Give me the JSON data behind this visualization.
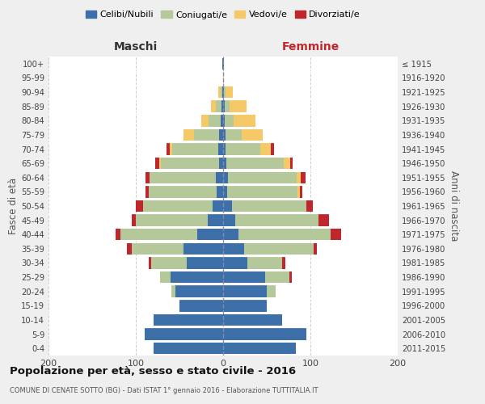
{
  "age_groups": [
    "0-4",
    "5-9",
    "10-14",
    "15-19",
    "20-24",
    "25-29",
    "30-34",
    "35-39",
    "40-44",
    "45-49",
    "50-54",
    "55-59",
    "60-64",
    "65-69",
    "70-74",
    "75-79",
    "80-84",
    "85-89",
    "90-94",
    "95-99",
    "100+"
  ],
  "birth_years": [
    "2011-2015",
    "2006-2010",
    "2001-2005",
    "1996-2000",
    "1991-1995",
    "1986-1990",
    "1981-1985",
    "1976-1980",
    "1971-1975",
    "1966-1970",
    "1961-1965",
    "1956-1960",
    "1951-1955",
    "1946-1950",
    "1941-1945",
    "1936-1940",
    "1931-1935",
    "1926-1930",
    "1921-1925",
    "1916-1920",
    "≤ 1915"
  ],
  "males": {
    "celibe": [
      80,
      90,
      80,
      50,
      55,
      60,
      42,
      45,
      30,
      18,
      12,
      7,
      8,
      5,
      6,
      5,
      3,
      2,
      1,
      0,
      1
    ],
    "coniugato": [
      0,
      0,
      0,
      0,
      4,
      12,
      40,
      60,
      88,
      82,
      80,
      78,
      76,
      66,
      52,
      28,
      14,
      6,
      2,
      0,
      0
    ],
    "vedovo": [
      0,
      0,
      0,
      0,
      0,
      0,
      0,
      0,
      0,
      0,
      0,
      0,
      0,
      2,
      3,
      12,
      8,
      6,
      3,
      0,
      0
    ],
    "divorziato": [
      0,
      0,
      0,
      0,
      0,
      0,
      3,
      5,
      5,
      5,
      8,
      4,
      5,
      5,
      4,
      0,
      0,
      0,
      0,
      0,
      0
    ]
  },
  "females": {
    "nubile": [
      83,
      95,
      68,
      50,
      50,
      48,
      28,
      24,
      18,
      14,
      10,
      5,
      6,
      4,
      3,
      3,
      2,
      2,
      1,
      0,
      1
    ],
    "coniugata": [
      0,
      0,
      0,
      0,
      10,
      28,
      40,
      80,
      105,
      95,
      85,
      80,
      78,
      65,
      40,
      18,
      10,
      5,
      2,
      0,
      0
    ],
    "vedova": [
      0,
      0,
      0,
      0,
      0,
      0,
      0,
      0,
      0,
      0,
      0,
      3,
      5,
      8,
      12,
      24,
      25,
      20,
      8,
      1,
      0
    ],
    "divorziata": [
      0,
      0,
      0,
      0,
      0,
      3,
      3,
      3,
      12,
      12,
      8,
      3,
      5,
      3,
      3,
      0,
      0,
      0,
      0,
      0,
      0
    ]
  },
  "colors": {
    "celibe": "#3d6fa8",
    "coniugato": "#b5c89a",
    "vedovo": "#f5c868",
    "divorziato": "#c0272d"
  },
  "xlim": 200,
  "title": "Popolazione per età, sesso e stato civile - 2016",
  "subtitle": "COMUNE DI CENATE SOTTO (BG) - Dati ISTAT 1° gennaio 2016 - Elaborazione TUTTITALIA.IT",
  "xlabel_left": "Maschi",
  "xlabel_right": "Femmine",
  "ylabel_left": "Fasce di età",
  "ylabel_right": "Anni di nascita",
  "legend_labels": [
    "Celibi/Nubili",
    "Coniugati/e",
    "Vedovi/e",
    "Divorziati/e"
  ],
  "bg_color": "#efefef",
  "plot_bg_color": "#ffffff"
}
